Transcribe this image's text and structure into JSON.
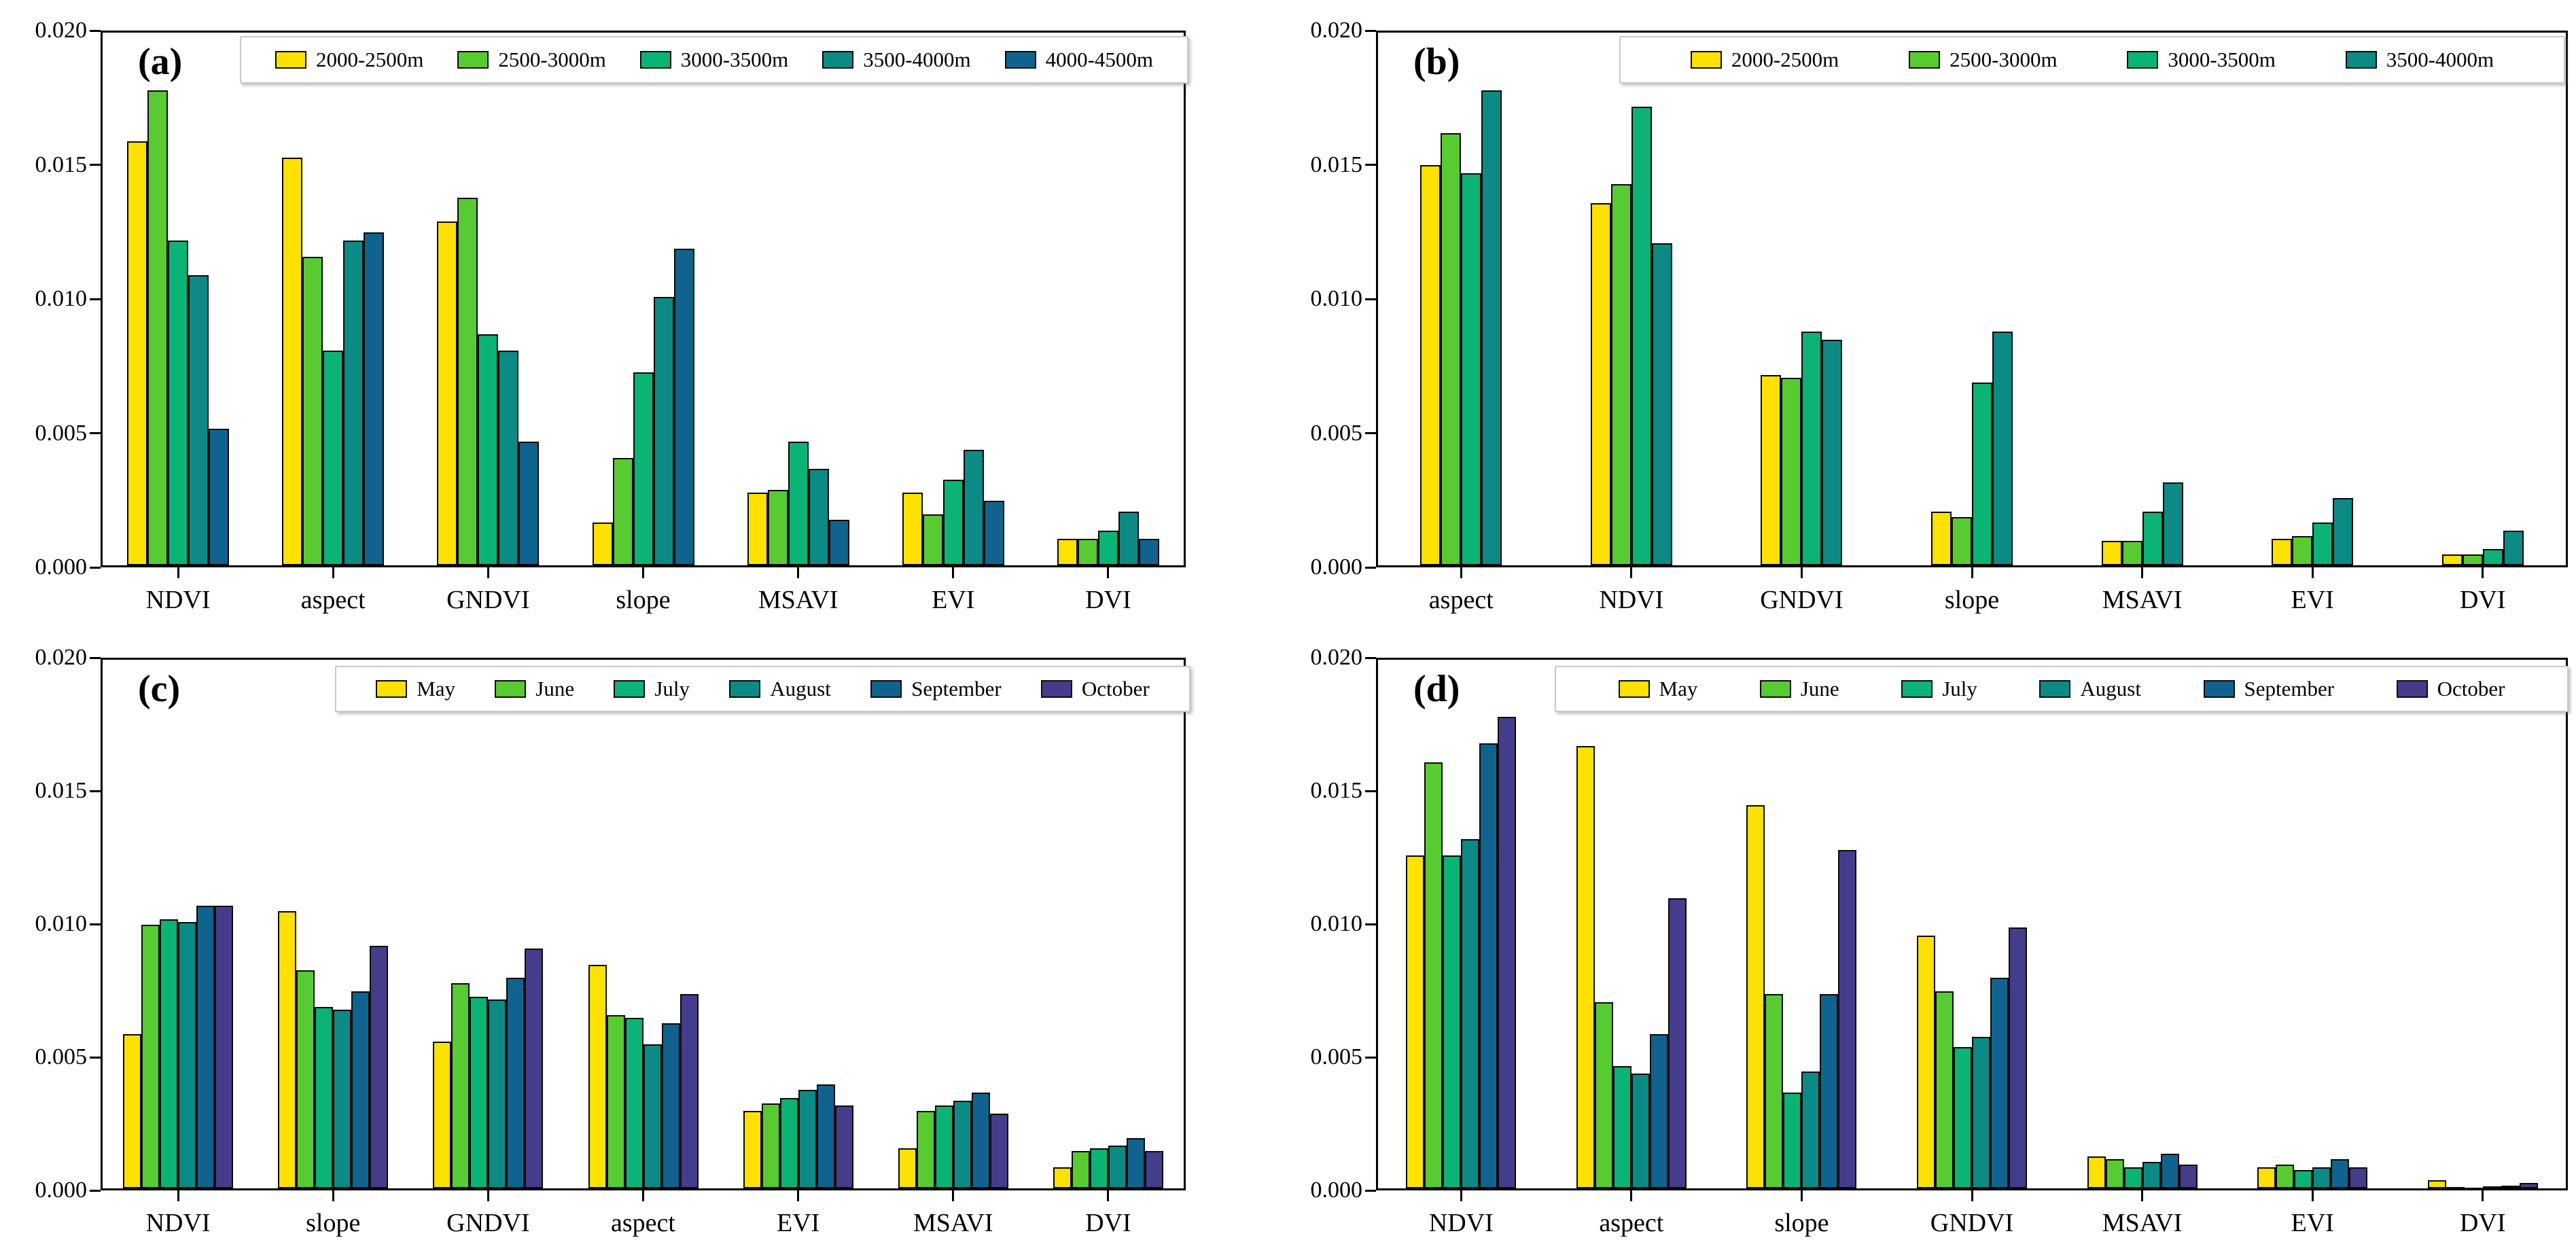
{
  "figure": {
    "background": "#ffffff",
    "axis_color": "#000000",
    "series_colors": {
      "yellow": "#FFE100",
      "light_green": "#58CB32",
      "green": "#0BB375",
      "teal": "#0B8A86",
      "blue": "#10638F",
      "purple": "#443D8B"
    }
  },
  "chart_data": [
    {
      "id": "a",
      "panel_label": "(a)",
      "type": "bar",
      "title": "",
      "xlabel": "",
      "ylabel": "",
      "ylim": [
        0,
        0.02
      ],
      "yticks": [
        "0.000",
        "0.005",
        "0.010",
        "0.015",
        "0.020"
      ],
      "grid": false,
      "legend_position": "top",
      "categories": [
        "NDVI",
        "aspect",
        "GNDVI",
        "slope",
        "MSAVI",
        "EVI",
        "DVI"
      ],
      "series": [
        {
          "name": "2000-2500m",
          "color": "#FFE100",
          "values": [
            0.0158,
            0.0152,
            0.0128,
            0.0016,
            0.0027,
            0.0027,
            0.001
          ]
        },
        {
          "name": "2500-3000m",
          "color": "#58CB32",
          "values": [
            0.0177,
            0.0115,
            0.0137,
            0.004,
            0.0028,
            0.0019,
            0.001
          ]
        },
        {
          "name": "3000-3500m",
          "color": "#0BB375",
          "values": [
            0.0121,
            0.008,
            0.0086,
            0.0072,
            0.0046,
            0.0032,
            0.0013
          ]
        },
        {
          "name": "3500-4000m",
          "color": "#0B8A86",
          "values": [
            0.0108,
            0.0121,
            0.008,
            0.01,
            0.0036,
            0.0043,
            0.002
          ]
        },
        {
          "name": "4000-4500m",
          "color": "#10638F",
          "values": [
            0.0051,
            0.0124,
            0.0046,
            0.0118,
            0.0017,
            0.0024,
            0.001
          ]
        }
      ]
    },
    {
      "id": "b",
      "panel_label": "(b)",
      "type": "bar",
      "title": "",
      "xlabel": "",
      "ylabel": "",
      "ylim": [
        0,
        0.02
      ],
      "yticks": [
        "0.000",
        "0.005",
        "0.010",
        "0.015",
        "0.020"
      ],
      "grid": false,
      "legend_position": "top",
      "categories": [
        "aspect",
        "NDVI",
        "GNDVI",
        "slope",
        "MSAVI",
        "EVI",
        "DVI"
      ],
      "series": [
        {
          "name": "2000-2500m",
          "color": "#FFE100",
          "values": [
            0.0149,
            0.0135,
            0.0071,
            0.002,
            0.0009,
            0.001,
            0.0004
          ]
        },
        {
          "name": "2500-3000m",
          "color": "#58CB32",
          "values": [
            0.0161,
            0.0142,
            0.007,
            0.0018,
            0.0009,
            0.0011,
            0.0004
          ]
        },
        {
          "name": "3000-3500m",
          "color": "#0BB375",
          "values": [
            0.0146,
            0.0171,
            0.0087,
            0.0068,
            0.002,
            0.0016,
            0.0006
          ]
        },
        {
          "name": "3500-4000m",
          "color": "#0B8A86",
          "values": [
            0.0177,
            0.012,
            0.0084,
            0.0087,
            0.0031,
            0.0025,
            0.0013
          ]
        }
      ]
    },
    {
      "id": "c",
      "panel_label": "(c)",
      "type": "bar",
      "title": "",
      "xlabel": "",
      "ylabel": "",
      "ylim": [
        0,
        0.02
      ],
      "yticks": [
        "0.000",
        "0.005",
        "0.010",
        "0.015",
        "0.020"
      ],
      "grid": false,
      "legend_position": "top",
      "categories": [
        "NDVI",
        "slope",
        "GNDVI",
        "aspect",
        "EVI",
        "MSAVI",
        "DVI"
      ],
      "series": [
        {
          "name": "May",
          "color": "#FFE100",
          "values": [
            0.0058,
            0.0104,
            0.0055,
            0.0084,
            0.0029,
            0.0015,
            0.0008
          ]
        },
        {
          "name": "June",
          "color": "#58CB32",
          "values": [
            0.0099,
            0.0082,
            0.0077,
            0.0065,
            0.0032,
            0.0029,
            0.0014
          ]
        },
        {
          "name": "July",
          "color": "#0BB375",
          "values": [
            0.0101,
            0.0068,
            0.0072,
            0.0064,
            0.0034,
            0.0031,
            0.0015
          ]
        },
        {
          "name": "August",
          "color": "#0B8A86",
          "values": [
            0.01,
            0.0067,
            0.0071,
            0.0054,
            0.0037,
            0.0033,
            0.0016
          ]
        },
        {
          "name": "September",
          "color": "#10638F",
          "values": [
            0.0106,
            0.0074,
            0.0079,
            0.0062,
            0.0039,
            0.0036,
            0.0019
          ]
        },
        {
          "name": "October",
          "color": "#443D8B",
          "values": [
            0.0106,
            0.0091,
            0.009,
            0.0073,
            0.0031,
            0.0028,
            0.0014
          ]
        }
      ]
    },
    {
      "id": "d",
      "panel_label": "(d)",
      "type": "bar",
      "title": "",
      "xlabel": "",
      "ylabel": "",
      "ylim": [
        0,
        0.02
      ],
      "yticks": [
        "0.000",
        "0.005",
        "0.010",
        "0.015",
        "0.020"
      ],
      "grid": false,
      "legend_position": "top",
      "categories": [
        "NDVI",
        "aspect",
        "slope",
        "GNDVI",
        "MSAVI",
        "EVI",
        "DVI"
      ],
      "series": [
        {
          "name": "May",
          "color": "#FFE100",
          "values": [
            0.0125,
            0.0166,
            0.0144,
            0.0095,
            0.0012,
            0.0008,
            0.0003
          ]
        },
        {
          "name": "June",
          "color": "#58CB32",
          "values": [
            0.016,
            0.007,
            0.0073,
            0.0074,
            0.0011,
            0.0009,
            5e-05
          ]
        },
        {
          "name": "July",
          "color": "#0BB375",
          "values": [
            0.0125,
            0.0046,
            0.0036,
            0.0053,
            0.0008,
            0.0007,
            2e-05
          ]
        },
        {
          "name": "August",
          "color": "#0B8A86",
          "values": [
            0.0131,
            0.0043,
            0.0044,
            0.0057,
            0.001,
            0.0008,
            8e-05
          ]
        },
        {
          "name": "September",
          "color": "#10638F",
          "values": [
            0.0167,
            0.0058,
            0.0073,
            0.0079,
            0.0013,
            0.0011,
            0.0001
          ]
        },
        {
          "name": "October",
          "color": "#443D8B",
          "values": [
            0.0177,
            0.0109,
            0.0127,
            0.0098,
            0.0009,
            0.0008,
            0.0002
          ]
        }
      ]
    }
  ]
}
